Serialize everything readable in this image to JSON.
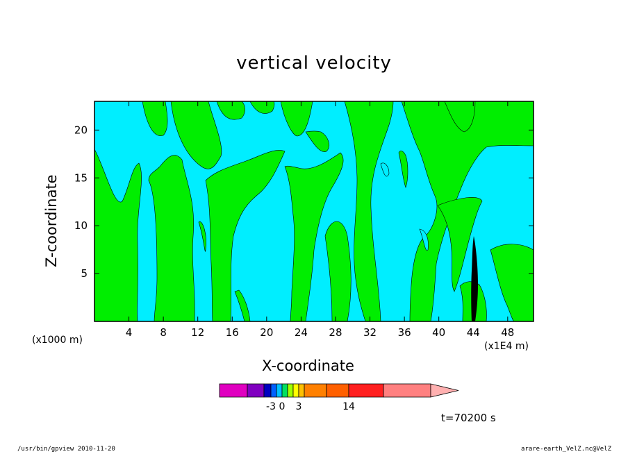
{
  "chart_data": {
    "type": "contour",
    "title": "vertical velocity",
    "xlabel": "X-coordinate",
    "ylabel": "Z-coordinate",
    "x_unit_left": "(x1000 m)",
    "x_unit_right": "(x1E4 m)",
    "xlim": [
      0,
      51
    ],
    "ylim": [
      0,
      23
    ],
    "x_ticks": [
      4,
      8,
      12,
      16,
      20,
      24,
      28,
      32,
      36,
      40,
      44,
      48
    ],
    "y_ticks": [
      5,
      10,
      15,
      20
    ],
    "fill_colors": {
      "positive": "#00ee00",
      "negative": "#00eeff",
      "strong": "#000000"
    },
    "colorbar": {
      "colors": [
        "#e000c0",
        "#8000c0",
        "#0000c0",
        "#0060ff",
        "#00c0ff",
        "#00e060",
        "#a0ff00",
        "#ffff00",
        "#ffc000",
        "#ff8000",
        "#ff6000",
        "#ff2020",
        "#ff8080",
        "#ffb0b0"
      ],
      "labels": [
        "-3",
        "0",
        "3",
        "14"
      ]
    },
    "time_label": "t=70200 s",
    "footer_left": "/usr/bin/gpview   2010-11-20",
    "footer_right": "arare-earth_VelZ.nc@VelZ"
  }
}
